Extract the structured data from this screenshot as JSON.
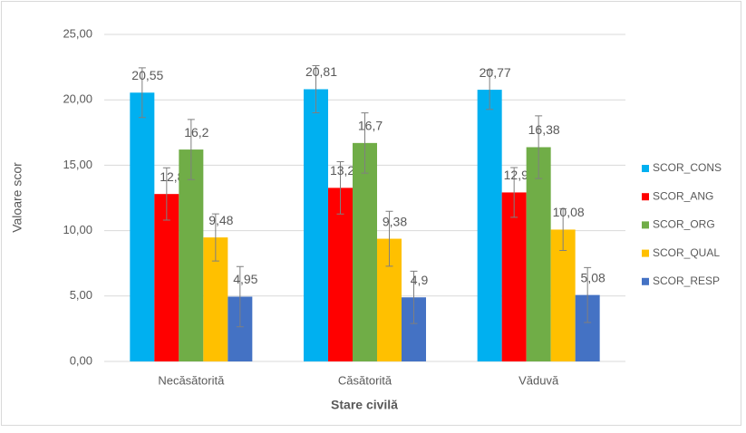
{
  "chart_data": {
    "type": "bar",
    "xlabel": "Stare civilă",
    "ylabel": "Valoare scor",
    "categories": [
      "Necăsătorită",
      "Căsătorită",
      "Văduvă"
    ],
    "series": [
      {
        "name": "SCOR_CONS",
        "color": "#00b0f0",
        "values": [
          20.55,
          20.81,
          20.77
        ],
        "value_labels": [
          "20,55",
          "20,81",
          "20,77"
        ],
        "errors": [
          1.9,
          1.8,
          1.5
        ]
      },
      {
        "name": "SCOR_ANG",
        "color": "#ff0000",
        "values": [
          12.8,
          13.27,
          12.92
        ],
        "value_labels": [
          "12,8",
          "13,27",
          "12,92"
        ],
        "errors": [
          2.0,
          2.0,
          1.9
        ]
      },
      {
        "name": "SCOR_ORG",
        "color": "#70ad47",
        "values": [
          16.2,
          16.7,
          16.38
        ],
        "value_labels": [
          "16,2",
          "16,7",
          "16,38"
        ],
        "errors": [
          2.3,
          2.3,
          2.4
        ]
      },
      {
        "name": "SCOR_QUAL",
        "color": "#ffc000",
        "values": [
          9.48,
          9.38,
          10.08
        ],
        "value_labels": [
          "9,48",
          "9,38",
          "10,08"
        ],
        "errors": [
          1.8,
          2.1,
          1.6
        ]
      },
      {
        "name": "SCOR_RESP",
        "color": "#4472c4",
        "values": [
          4.95,
          4.9,
          5.08
        ],
        "value_labels": [
          "4,95",
          "4,9",
          "5,08"
        ],
        "errors": [
          2.3,
          2.0,
          2.1
        ]
      }
    ],
    "ylim": [
      0,
      25
    ],
    "yticks": [
      {
        "value": 0,
        "label": "0,00"
      },
      {
        "value": 5,
        "label": "5,00"
      },
      {
        "value": 10,
        "label": "10,00"
      },
      {
        "value": 15,
        "label": "15,00"
      },
      {
        "value": 20,
        "label": "20,00"
      },
      {
        "value": 25,
        "label": "25,00"
      }
    ],
    "grid": true,
    "legend": "right"
  }
}
